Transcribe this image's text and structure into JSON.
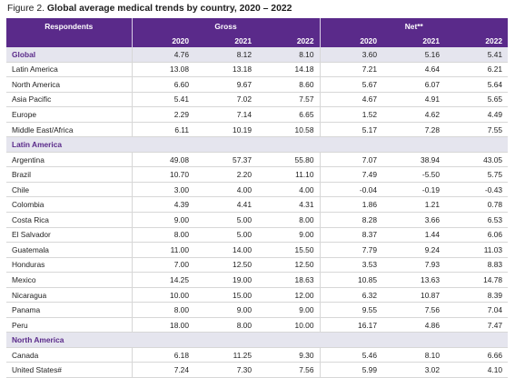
{
  "caption": {
    "prefix": "Figure 2.",
    "title": "Global average medical trends by country, 2020 – 2022"
  },
  "headers": {
    "respondents": "Respondents",
    "gross": "Gross",
    "net": "Net**",
    "years": [
      "2020",
      "2021",
      "2022",
      "2020",
      "2021",
      "2022"
    ]
  },
  "rows": [
    {
      "type": "highlight",
      "label": "Global",
      "values": [
        "4.76",
        "8.12",
        "8.10",
        "3.60",
        "5.16",
        "5.41"
      ]
    },
    {
      "type": "data",
      "label": "Latin America",
      "values": [
        "13.08",
        "13.18",
        "14.18",
        "7.21",
        "4.64",
        "6.21"
      ]
    },
    {
      "type": "data",
      "label": "North America",
      "values": [
        "6.60",
        "9.67",
        "8.60",
        "5.67",
        "6.07",
        "5.64"
      ]
    },
    {
      "type": "data",
      "label": "Asia Pacific",
      "values": [
        "5.41",
        "7.02",
        "7.57",
        "4.67",
        "4.91",
        "5.65"
      ]
    },
    {
      "type": "data",
      "label": "Europe",
      "values": [
        "2.29",
        "7.14",
        "6.65",
        "1.52",
        "4.62",
        "4.49"
      ]
    },
    {
      "type": "data",
      "label": "Middle East/Africa",
      "values": [
        "6.11",
        "10.19",
        "10.58",
        "5.17",
        "7.28",
        "7.55"
      ]
    },
    {
      "type": "section",
      "label": "Latin America"
    },
    {
      "type": "data",
      "label": "Argentina",
      "values": [
        "49.08",
        "57.37",
        "55.80",
        "7.07",
        "38.94",
        "43.05"
      ]
    },
    {
      "type": "data",
      "label": "Brazil",
      "values": [
        "10.70",
        "2.20",
        "11.10",
        "7.49",
        "-5.50",
        "5.75"
      ]
    },
    {
      "type": "data",
      "label": "Chile",
      "values": [
        "3.00",
        "4.00",
        "4.00",
        "-0.04",
        "-0.19",
        "-0.43"
      ]
    },
    {
      "type": "data",
      "label": "Colombia",
      "values": [
        "4.39",
        "4.41",
        "4.31",
        "1.86",
        "1.21",
        "0.78"
      ]
    },
    {
      "type": "data",
      "label": "Costa Rica",
      "values": [
        "9.00",
        "5.00",
        "8.00",
        "8.28",
        "3.66",
        "6.53"
      ]
    },
    {
      "type": "data",
      "label": "El Salvador",
      "values": [
        "8.00",
        "5.00",
        "9.00",
        "8.37",
        "1.44",
        "6.06"
      ]
    },
    {
      "type": "data",
      "label": "Guatemala",
      "values": [
        "11.00",
        "14.00",
        "15.50",
        "7.79",
        "9.24",
        "11.03"
      ]
    },
    {
      "type": "data",
      "label": "Honduras",
      "values": [
        "7.00",
        "12.50",
        "12.50",
        "3.53",
        "7.93",
        "8.83"
      ]
    },
    {
      "type": "data",
      "label": "Mexico",
      "values": [
        "14.25",
        "19.00",
        "18.63",
        "10.85",
        "13.63",
        "14.78"
      ]
    },
    {
      "type": "data",
      "label": "Nicaragua",
      "values": [
        "10.00",
        "15.00",
        "12.00",
        "6.32",
        "10.87",
        "8.39"
      ]
    },
    {
      "type": "data",
      "label": "Panama",
      "values": [
        "8.00",
        "9.00",
        "9.00",
        "9.55",
        "7.56",
        "7.04"
      ]
    },
    {
      "type": "data",
      "label": "Peru",
      "values": [
        "18.00",
        "8.00",
        "10.00",
        "16.17",
        "4.86",
        "7.47"
      ]
    },
    {
      "type": "section",
      "label": "North America"
    },
    {
      "type": "data",
      "label": "Canada",
      "values": [
        "6.18",
        "11.25",
        "9.30",
        "5.46",
        "8.10",
        "6.66"
      ]
    },
    {
      "type": "data",
      "label": "United States#",
      "values": [
        "7.24",
        "7.30",
        "7.56",
        "5.99",
        "3.02",
        "4.10"
      ]
    }
  ]
}
